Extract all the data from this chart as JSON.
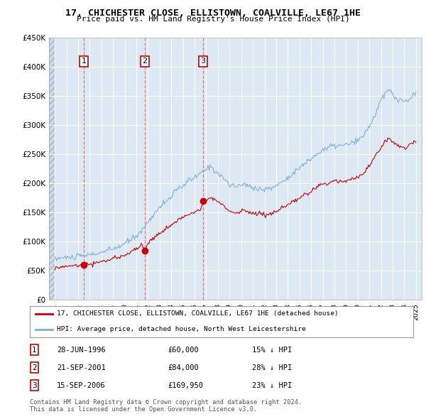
{
  "title": "17, CHICHESTER CLOSE, ELLISTOWN, COALVILLE, LE67 1HE",
  "subtitle": "Price paid vs. HM Land Registry's House Price Index (HPI)",
  "legend_line1": "17, CHICHESTER CLOSE, ELLISTOWN, COALVILLE, LE67 1HE (detached house)",
  "legend_line2": "HPI: Average price, detached house, North West Leicestershire",
  "footer1": "Contains HM Land Registry data © Crown copyright and database right 2024.",
  "footer2": "This data is licensed under the Open Government Licence v3.0.",
  "sales": [
    {
      "num": 1,
      "date": "28-JUN-1996",
      "price": 60000,
      "year": 1996.5,
      "pct": "15%",
      "dir": "↓"
    },
    {
      "num": 2,
      "date": "21-SEP-2001",
      "price": 84000,
      "year": 2001.72,
      "pct": "28%",
      "dir": "↓"
    },
    {
      "num": 3,
      "date": "15-SEP-2006",
      "price": 169950,
      "year": 2006.72,
      "pct": "23%",
      "dir": "↓"
    }
  ],
  "property_color": "#cc0000",
  "hpi_color": "#7aadd4",
  "dashed_color": "#ee6666",
  "point_color": "#cc0000",
  "ylim": [
    0,
    450000
  ],
  "xlim": [
    1993.5,
    2025.5
  ],
  "yticks": [
    0,
    50000,
    100000,
    150000,
    200000,
    250000,
    300000,
    350000,
    400000,
    450000
  ],
  "ytick_labels": [
    "£0",
    "£50K",
    "£100K",
    "£150K",
    "£200K",
    "£250K",
    "£300K",
    "£350K",
    "£400K",
    "£450K"
  ],
  "xticks": [
    1994,
    1995,
    1996,
    1997,
    1998,
    1999,
    2000,
    2001,
    2002,
    2003,
    2004,
    2005,
    2006,
    2007,
    2008,
    2009,
    2010,
    2011,
    2012,
    2013,
    2014,
    2015,
    2016,
    2017,
    2018,
    2019,
    2020,
    2021,
    2022,
    2023,
    2024,
    2025
  ]
}
